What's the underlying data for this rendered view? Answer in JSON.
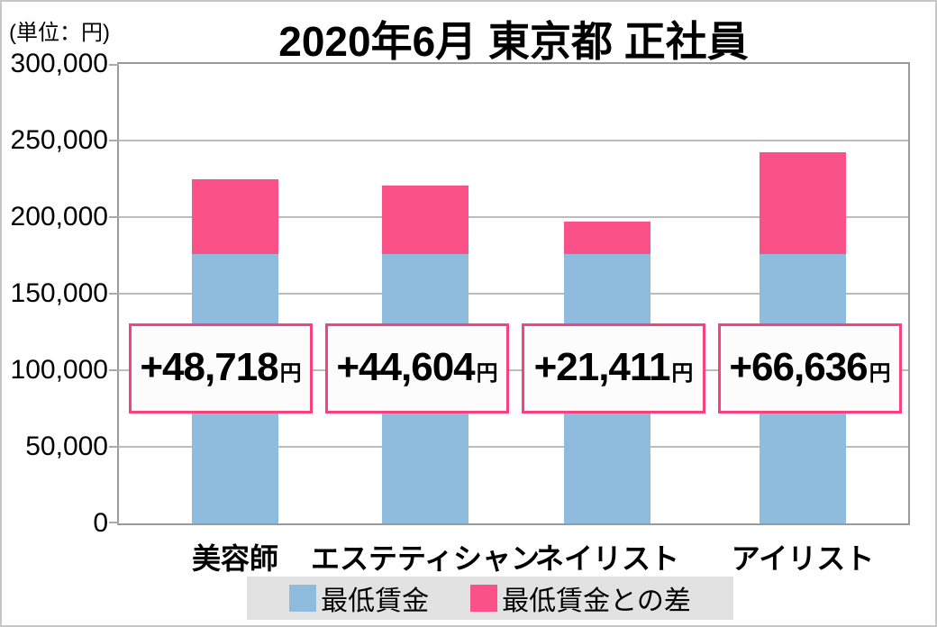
{
  "page": {
    "unit_label": "(単位：円)",
    "title": "2020年6月 東京都 正社員"
  },
  "colors": {
    "min_wage_bar": "#8FBCDC",
    "diff_bar": "#FB5189",
    "box_border": "#F8417D",
    "box_bg": "#FCFCFC",
    "legend_bg": "#E2E2E2",
    "gridline": "#BCBCBC",
    "plot_border": "#9A9A9A"
  },
  "chart_data": {
    "type": "bar",
    "stacked": true,
    "title": "2020年6月 東京都 正社員",
    "unit": "円",
    "categories": [
      "美容師",
      "エステティシャン",
      "ネイリスト",
      "アイリスト"
    ],
    "series": [
      {
        "name": "最低賃金",
        "color": "#8FBCDC",
        "values": [
          176000,
          176000,
          176000,
          176000
        ]
      },
      {
        "name": "最低賃金との差",
        "color": "#FB5189",
        "values": [
          48718,
          44604,
          21411,
          66636
        ]
      }
    ],
    "bar_labels": [
      "+48,718",
      "+44,604",
      "+21,411",
      "+66,636"
    ],
    "bar_label_suffix": "円",
    "ylim": [
      0,
      300000
    ],
    "ytick_step": 50000,
    "ytick_labels": [
      "0",
      "50,000",
      "100,000",
      "150,000",
      "200,000",
      "250,000",
      "300,000"
    ],
    "grid": true,
    "legend_position": "bottom"
  }
}
